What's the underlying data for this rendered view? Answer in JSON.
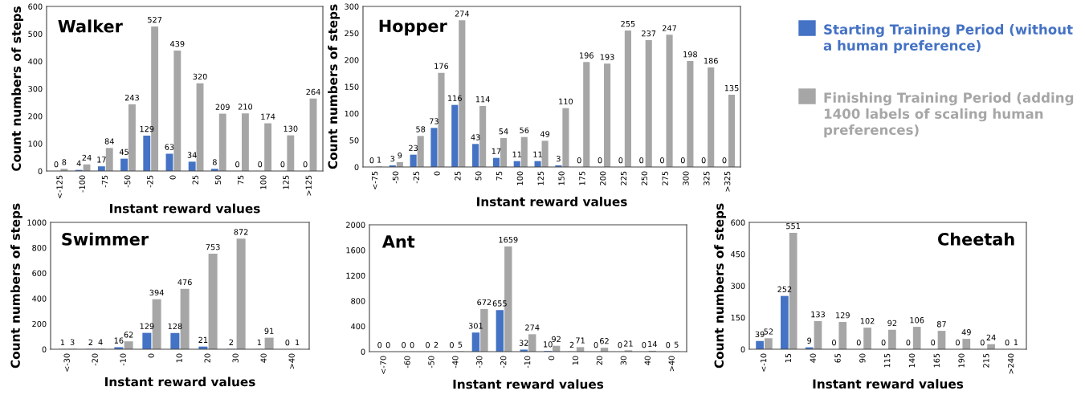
{
  "chart_data": [
    {
      "type": "bar",
      "title": "Walker",
      "xlabel": "Instant reward values",
      "ylabel": "Count numbers of steps",
      "categories": [
        "<-125",
        "-100",
        "-75",
        "-50",
        "-25",
        "0",
        "25",
        "50",
        "75",
        "100",
        "125",
        ">125"
      ],
      "series": [
        {
          "color": "#4472c4",
          "values": [
            0,
            4,
            17,
            45,
            129,
            63,
            34,
            8,
            0,
            0,
            0,
            0
          ]
        },
        {
          "color": "#a6a6a6",
          "values": [
            8,
            24,
            84,
            243,
            527,
            439,
            320,
            209,
            210,
            174,
            130,
            264
          ]
        }
      ],
      "ylim": [
        0,
        600
      ],
      "yticks": [
        0,
        100,
        200,
        300,
        400,
        500,
        600
      ],
      "data_labels": true
    },
    {
      "type": "bar",
      "title": "Hopper",
      "xlabel": "Instant reward values",
      "ylabel": "Count numbers of steps",
      "categories": [
        "<-75",
        "-50",
        "-25",
        "0",
        "25",
        "50",
        "75",
        "100",
        "125",
        "150",
        "175",
        "200",
        "225",
        "250",
        "275",
        "300",
        "325",
        ">325"
      ],
      "series": [
        {
          "name": "Starting Training Period (without a human preference)",
          "color": "#4472c4",
          "values": [
            0,
            3,
            23,
            73,
            116,
            43,
            17,
            11,
            11,
            3,
            0,
            0,
            0,
            0,
            0,
            0,
            0,
            0
          ]
        },
        {
          "name": "Finishing Training Period (adding 1400 labels of scaling human preferences)",
          "color": "#a6a6a6",
          "values": [
            1,
            9,
            58,
            176,
            274,
            114,
            54,
            56,
            49,
            110,
            196,
            193,
            255,
            237,
            247,
            198,
            186,
            135
          ]
        }
      ],
      "ylim": [
        0,
        300
      ],
      "yticks": [
        0,
        50,
        100,
        150,
        200,
        250,
        300
      ],
      "data_labels": true,
      "legend": "right"
    },
    {
      "type": "bar",
      "title": "Swimmer",
      "xlabel": "Instant reward values",
      "ylabel": "Count numbers of steps",
      "categories": [
        "<-30",
        "-20",
        "-10",
        "0",
        "10",
        "20",
        "30",
        "40",
        ">40"
      ],
      "series": [
        {
          "color": "#4472c4",
          "values": [
            1,
            2,
            16,
            129,
            128,
            21,
            2,
            1,
            0
          ]
        },
        {
          "color": "#a6a6a6",
          "values": [
            3,
            4,
            62,
            394,
            476,
            753,
            872,
            91,
            1
          ]
        }
      ],
      "ylim": [
        0,
        1000
      ],
      "yticks": [
        0,
        200,
        400,
        600,
        800,
        1000
      ],
      "data_labels": true
    },
    {
      "type": "bar",
      "title": "Ant",
      "xlabel": "Instant reward values",
      "categories": [
        "<-70",
        "-60",
        "-50",
        "-40",
        "-30",
        "-20",
        "-10",
        "0",
        "10",
        "20",
        "30",
        "40",
        ">40"
      ],
      "series": [
        {
          "color": "#4472c4",
          "values": [
            0,
            0,
            0,
            0,
            301,
            655,
            32,
            10,
            2,
            0,
            0,
            0,
            0
          ]
        },
        {
          "color": "#a6a6a6",
          "values": [
            0,
            0,
            2,
            5,
            672,
            1659,
            274,
            92,
            71,
            62,
            21,
            14,
            5
          ]
        }
      ],
      "ylim": [
        0,
        2000
      ],
      "yticks": [
        0,
        400,
        800,
        1200,
        1600,
        2000
      ],
      "data_labels": true
    },
    {
      "type": "bar",
      "title": "Cheetah",
      "xlabel": "Instant reward values",
      "ylabel": "Count numbers of steps",
      "categories": [
        "<-10",
        "15",
        "40",
        "65",
        "90",
        "115",
        "140",
        "165",
        "190",
        "215",
        ">240"
      ],
      "series": [
        {
          "color": "#4472c4",
          "values": [
            39,
            252,
            9,
            0,
            0,
            0,
            0,
            0,
            0,
            0,
            0
          ]
        },
        {
          "color": "#a6a6a6",
          "values": [
            52,
            551,
            133,
            129,
            102,
            92,
            106,
            87,
            49,
            24,
            1
          ]
        }
      ],
      "ylim": [
        0,
        600
      ],
      "yticks": [
        0,
        150,
        300,
        450,
        600
      ],
      "data_labels": true
    }
  ]
}
